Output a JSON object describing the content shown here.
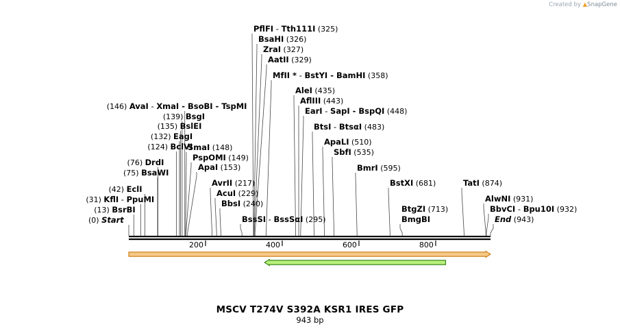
{
  "credit": {
    "prefix": "Created by",
    "brand": "SnapGene"
  },
  "map": {
    "title": "MSCV T274V S392A KSR1 IRES GFP",
    "length_label": "943 bp",
    "length": 943,
    "ticks": [
      200,
      400,
      600,
      800
    ],
    "features": [
      {
        "name": "orange-feature",
        "start": 0,
        "end": 943,
        "direction": "forward",
        "fill": "#f5c887",
        "stroke": "#c87b12"
      },
      {
        "name": "green-feature",
        "start": 354,
        "end": 826,
        "direction": "reverse",
        "fill": "#b7ef7a",
        "stroke": "#2f7d12"
      }
    ],
    "sites": [
      {
        "label": "Start",
        "pos": 0,
        "pos_label": "(0)",
        "italic": true
      },
      {
        "label": "BsrBI",
        "pos": 13,
        "pos_label": "(13)"
      },
      {
        "label": "KflI",
        "pos": 31,
        "pos_label": "(31)",
        "extra": "PpuMI"
      },
      {
        "label": "EclI",
        "pos": 42,
        "pos_label": "(42)"
      },
      {
        "label": "BsaWI",
        "pos": 75,
        "pos_label": "(75)"
      },
      {
        "label": "DrdI",
        "pos": 76,
        "pos_label": "(76)"
      },
      {
        "label": "BclVI",
        "pos": 124,
        "pos_label": "(124)"
      },
      {
        "label": "EagI",
        "pos": 132,
        "pos_label": "(132)"
      },
      {
        "label": "BslEI",
        "pos": 135,
        "pos_label": "(135)"
      },
      {
        "label": "BsgI",
        "pos": 139,
        "pos_label": "(139)"
      },
      {
        "label": "AvaI",
        "pos": 146,
        "pos_label": "(146)",
        "extra": "XmaI  -  BsoBI  -  TspMI"
      },
      {
        "label": "SmaI",
        "pos": 148,
        "pos_label": "(148)"
      },
      {
        "label": "PspOMI",
        "pos": 149,
        "pos_label": "(149)"
      },
      {
        "label": "ApaI",
        "pos": 153,
        "pos_label": "(153)"
      },
      {
        "label": "AvrII",
        "pos": 217,
        "pos_label": "(217)"
      },
      {
        "label": "AcuI",
        "pos": 229,
        "pos_label": "(229)"
      },
      {
        "label": "BbsI",
        "pos": 240,
        "pos_label": "(240)"
      },
      {
        "label": "BssSI",
        "pos": 295,
        "pos_label": "(295)",
        "extra": "BssSαI"
      },
      {
        "label": "PflFI",
        "pos": 325,
        "pos_label": "(325)",
        "extra": "Tth111I"
      },
      {
        "label": "BsaHI",
        "pos": 326,
        "pos_label": "(326)"
      },
      {
        "label": "ZraI",
        "pos": 327,
        "pos_label": "(327)"
      },
      {
        "label": "AatII",
        "pos": 329,
        "pos_label": "(329)"
      },
      {
        "label": "MfII *",
        "pos": 358,
        "pos_label": "(358)",
        "extra": "BstYI  -  BamHI"
      },
      {
        "label": "AleI",
        "pos": 435,
        "pos_label": "(435)"
      },
      {
        "label": "AflIII",
        "pos": 443,
        "pos_label": "(443)"
      },
      {
        "label": "EarI",
        "pos": 448,
        "pos_label": "(448)",
        "extra": "SapI  -  BspQI"
      },
      {
        "label": "BtsI",
        "pos": 483,
        "pos_label": "(483)",
        "extra": "BtsαI"
      },
      {
        "label": "ApaLI",
        "pos": 510,
        "pos_label": "(510)"
      },
      {
        "label": "SbfI",
        "pos": 535,
        "pos_label": "(535)"
      },
      {
        "label": "BmrI",
        "pos": 595,
        "pos_label": "(595)"
      },
      {
        "label": "BstXI",
        "pos": 681,
        "pos_label": "(681)"
      },
      {
        "label": "BtgZI",
        "pos": 713,
        "pos_label": "(713)",
        "extra_below": "BmgBI"
      },
      {
        "label": "TatI",
        "pos": 874,
        "pos_label": "(874)"
      },
      {
        "label": "AlwNI",
        "pos": 931,
        "pos_label": "(931)"
      },
      {
        "label": "BbvCI",
        "pos": 932,
        "pos_label": "(932)",
        "extra": "Bpu10I"
      },
      {
        "label": "End",
        "pos": 943,
        "pos_label": "(943)",
        "italic": true
      }
    ]
  }
}
